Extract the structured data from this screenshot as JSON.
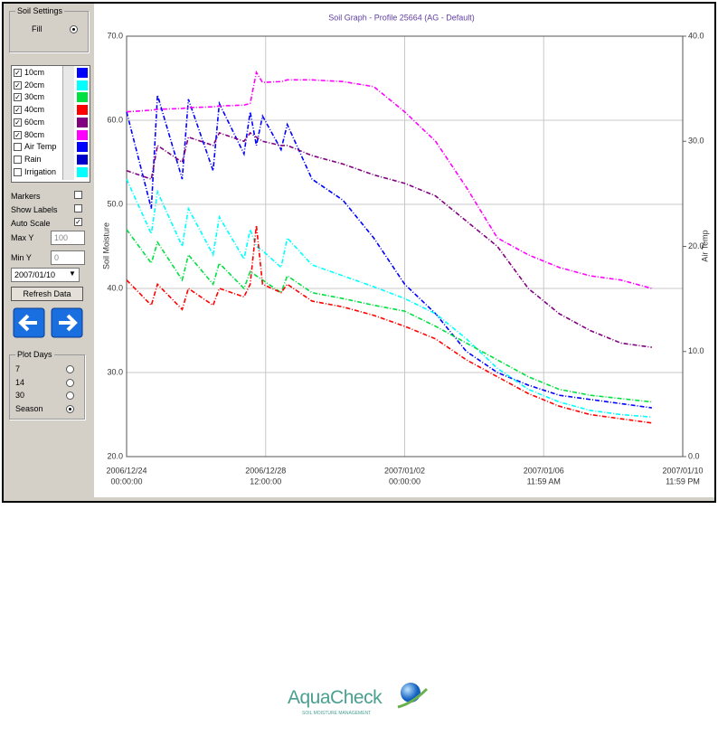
{
  "chart_data": {
    "type": "line",
    "title": "Soil Graph - Profile 25664 (AG - Default)",
    "y_label": "Soil Moisture",
    "y2_label": "Air Temp",
    "x": [
      "2006/12/24 00:00",
      "2006/12/24 19:12",
      "2006/12/25 00:00",
      "2006/12/25 19:12",
      "2006/12/26 00:00",
      "2006/12/26 19:12",
      "2006/12/27 00:00",
      "2006/12/27 19:12",
      "2006/12/28 00:00",
      "2006/12/28 04:48",
      "2006/12/28 09:36",
      "2006/12/29 00:00",
      "2006/12/29 04:48",
      "2006/12/30 00:00",
      "2006/12/31 00:00",
      "2007/01/01 00:00",
      "2007/01/02 00:00",
      "2007/01/03 00:00",
      "2007/01/04 00:00",
      "2007/01/05 00:00",
      "2007/01/06 00:00",
      "2007/01/07 00:00",
      "2007/01/08 00:00",
      "2007/01/09 00:00",
      "2007/01/10 00:00"
    ],
    "series": [
      {
        "name": "10cm",
        "color": "#0000ff",
        "visible": true,
        "values": [
          61,
          49.5,
          63,
          53,
          62.5,
          54,
          62,
          56,
          61,
          57,
          60.5,
          56.5,
          59.5,
          53,
          50.5,
          46,
          40.5,
          37,
          32.5,
          30,
          28.5,
          27.3,
          26.8,
          26.3,
          25.8
        ]
      },
      {
        "name": "20cm",
        "color": "#00ffff",
        "visible": true,
        "values": [
          53,
          46.5,
          51.5,
          45,
          49.5,
          44,
          48.5,
          43.5,
          47,
          45,
          44.5,
          42.5,
          46,
          42.8,
          41.5,
          40.2,
          38.8,
          37,
          34,
          30.5,
          28,
          26.5,
          25.5,
          25,
          24.7
        ]
      },
      {
        "name": "30cm",
        "color": "#00e040",
        "visible": true,
        "values": [
          47,
          43,
          45.5,
          41,
          44,
          40.5,
          43,
          40,
          42,
          41.5,
          41,
          39.5,
          41.5,
          39.5,
          38.8,
          38,
          37.3,
          35.5,
          33.5,
          31.5,
          29.5,
          28,
          27.3,
          26.9,
          26.5
        ]
      },
      {
        "name": "40cm",
        "color": "#ff0000",
        "visible": true,
        "values": [
          41,
          38,
          40.5,
          37.5,
          40,
          38,
          40,
          39,
          40.5,
          47.5,
          40.5,
          39.5,
          40.5,
          38.5,
          37.8,
          36.8,
          35.5,
          34,
          31.5,
          29.5,
          27.5,
          26,
          25,
          24.5,
          24
        ]
      },
      {
        "name": "60cm",
        "color": "#800080",
        "visible": true,
        "values": [
          54,
          53,
          57,
          55,
          58,
          57,
          58.5,
          57.5,
          58.5,
          58,
          57.5,
          57,
          57,
          55.8,
          54.8,
          53.5,
          52.5,
          51,
          48,
          45,
          40,
          37,
          35,
          33.5,
          33
        ]
      },
      {
        "name": "80cm",
        "color": "#ff00ff",
        "visible": true,
        "values": [
          61,
          61.2,
          61.3,
          61.4,
          61.5,
          61.6,
          61.7,
          61.8,
          62,
          65.7,
          64.5,
          64.6,
          64.8,
          64.8,
          64.6,
          64,
          61,
          57.5,
          52,
          46,
          44,
          42.5,
          41.5,
          41,
          40
        ]
      }
    ],
    "xlim": [
      "2006/12/24 00:00",
      "2007/01/10 23:59"
    ],
    "xticks": [
      {
        "value": "2006/12/24 00:00",
        "label": "2006/12/24",
        "time": "00:00:00"
      },
      {
        "value": "2006/12/28 12:00",
        "label": "2006/12/28",
        "time": "12:00:00"
      },
      {
        "value": "2007/01/02 00:00",
        "label": "2007/01/02",
        "time": "00:00:00"
      },
      {
        "value": "2007/01/06 11:59",
        "label": "2007/01/06",
        "time": "11:59 AM"
      },
      {
        "value": "2007/01/10 23:59",
        "label": "2007/01/10",
        "time": "11:59 PM"
      }
    ],
    "ylim": [
      20,
      70
    ],
    "yticks": [
      {
        "value": 20,
        "label": "20.0"
      },
      {
        "value": 30,
        "label": "30.0"
      },
      {
        "value": 40,
        "label": "40.0"
      },
      {
        "value": 50,
        "label": "50.0"
      },
      {
        "value": 60,
        "label": "60.0"
      },
      {
        "value": 70,
        "label": "70.0"
      }
    ],
    "y2lim": [
      0,
      40
    ],
    "y2ticks": [
      {
        "value": 0,
        "label": "0.0"
      },
      {
        "value": 10,
        "label": "10.0"
      },
      {
        "value": 20,
        "label": "20.0"
      },
      {
        "value": 30,
        "label": "30.0"
      },
      {
        "value": 40,
        "label": "40.0"
      }
    ],
    "grid": true
  },
  "panel": {
    "soil_settings": {
      "title": "Soil Settings",
      "fill": "Fill"
    },
    "extra_channels": [
      {
        "name": "Air Temp",
        "color": "#0000ff"
      },
      {
        "name": "Rain",
        "color": "#0000cc"
      },
      {
        "name": "Irrigation",
        "color": "#00ffff"
      }
    ],
    "markers": "Markers",
    "show_labels": "Show Labels",
    "auto_scale": "Auto Scale",
    "max_y": {
      "label": "Max Y",
      "value": "100"
    },
    "min_y": {
      "label": "Min Y",
      "value": "0"
    },
    "date": "2007/01/10",
    "refresh": "Refresh Data",
    "plot_days": {
      "title": "Plot Days",
      "options": [
        "7",
        "14",
        "30",
        "Season"
      ]
    }
  },
  "logo": {
    "name": "AquaCheck",
    "tagline": "SOIL MOISTURE MANAGEMENT"
  }
}
